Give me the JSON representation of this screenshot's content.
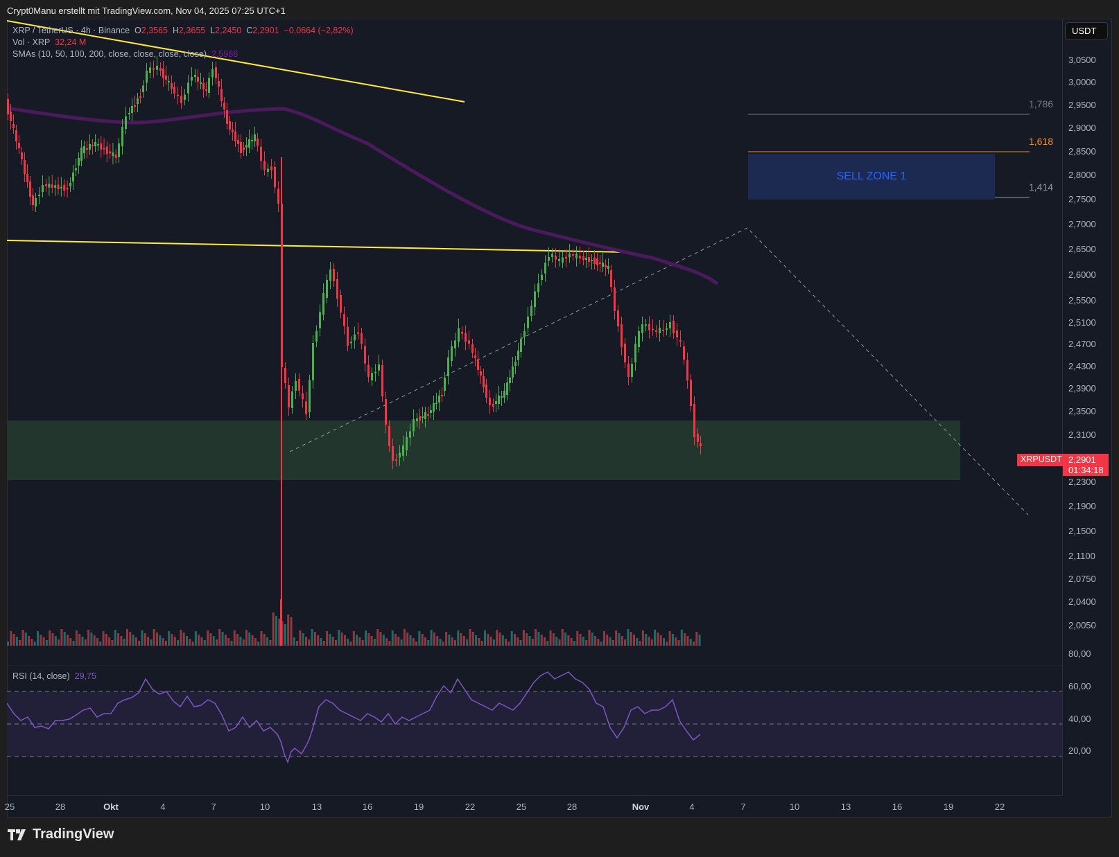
{
  "credit": "Crypt0Manu erstellt mit TradingView.com, Nov 04, 2025 07:25 UTC+1",
  "legend": {
    "symbol": "XRP / TetherUS · 4h · Binance",
    "o_label": "O",
    "o_value": "2,3565",
    "h_label": "H",
    "h_value": "2,3655",
    "l_label": "L",
    "l_value": "2,2450",
    "c_label": "C",
    "c_value": "2,2901",
    "change": "−0,0664 (−2,82%)",
    "vol_label": "Vol · XRP",
    "vol_value": "32,24 M",
    "sma_label": "SMAs (10, 50, 100, 200, close, close, close, close)",
    "sma_value": "2,5986"
  },
  "rsi_legend": {
    "label": "RSI (14, close)",
    "value": "29,75"
  },
  "currency_button": "USDT",
  "last_price": {
    "symbol": "XRPUSDT",
    "price": "2,2901",
    "countdown": "01:34:18"
  },
  "sell_zone_label": "SELL ZONE 1",
  "fib_levels": [
    {
      "label": "1,786",
      "color": "#787b86"
    },
    {
      "label": "1,618",
      "color": "#f7931a"
    },
    {
      "label": "1,414",
      "color": "#9598a1"
    }
  ],
  "price_axis": [
    "3,0500",
    "3,0000",
    "2,9500",
    "2,9000",
    "2,8500",
    "2,8000",
    "2,7500",
    "2,7000",
    "2,6500",
    "2,6000",
    "2,5500",
    "2,5100",
    "2,4700",
    "2,4300",
    "2,3900",
    "2,3500",
    "2,3100",
    "2,2300",
    "2,1900",
    "2,1500",
    "2,1100",
    "2,0750",
    "2,0400",
    "2,0050"
  ],
  "rsi_axis": [
    "80,00",
    "60,00",
    "40,00",
    "20,00"
  ],
  "time_axis": [
    {
      "label": "25",
      "bold": false
    },
    {
      "label": "28",
      "bold": false
    },
    {
      "label": "Okt",
      "bold": true
    },
    {
      "label": "4",
      "bold": false
    },
    {
      "label": "7",
      "bold": false
    },
    {
      "label": "10",
      "bold": false
    },
    {
      "label": "13",
      "bold": false
    },
    {
      "label": "16",
      "bold": false
    },
    {
      "label": "19",
      "bold": false
    },
    {
      "label": "22",
      "bold": false
    },
    {
      "label": "25",
      "bold": false
    },
    {
      "label": "28",
      "bold": false
    },
    {
      "label": "Nov",
      "bold": true
    },
    {
      "label": "4",
      "bold": false
    },
    {
      "label": "7",
      "bold": false
    },
    {
      "label": "10",
      "bold": false
    },
    {
      "label": "13",
      "bold": false
    },
    {
      "label": "16",
      "bold": false
    },
    {
      "label": "19",
      "bold": false
    },
    {
      "label": "22",
      "bold": false
    }
  ],
  "brand": "TradingView",
  "colors": {
    "up": "#4caf50",
    "down": "#f23645",
    "vol_up": "#22696a",
    "vol_down": "#8e3a40",
    "sma": "#4a1a5c",
    "trend": "#ffeb3b",
    "rsi": "#7e57c2",
    "demand_zone": "#22362e",
    "sell_zone": "#1c2951"
  },
  "chart_data": {
    "type": "candlestick",
    "title": "XRP / TetherUS · 4h · Binance",
    "xlabel": "",
    "ylabel": "USDT",
    "ylim": [
      2.0,
      3.07
    ],
    "x_ticks": [
      "25",
      "28",
      "Okt",
      "4",
      "7",
      "10",
      "13",
      "16",
      "19",
      "22",
      "25",
      "28",
      "Nov",
      "4"
    ],
    "key_points": [
      {
        "date": "Sep 25",
        "close": 2.85
      },
      {
        "date": "Sep 27",
        "close": 2.74
      },
      {
        "date": "Okt 2",
        "close": 3.02
      },
      {
        "date": "Okt 4",
        "close": 3.03
      },
      {
        "date": "Okt 7",
        "close": 2.98
      },
      {
        "date": "Okt 10",
        "close": 2.8
      },
      {
        "date": "Okt 10 (crash wick low)",
        "low": 1.58
      },
      {
        "date": "Okt 13",
        "close": 2.62
      },
      {
        "date": "Okt 17",
        "close": 2.26
      },
      {
        "date": "Okt 21",
        "close": 2.55
      },
      {
        "date": "Okt 27",
        "close": 2.66
      },
      {
        "date": "Okt 30",
        "close": 2.4
      },
      {
        "date": "Nov 2",
        "close": 2.51
      },
      {
        "date": "Nov 4",
        "open": 2.3565,
        "high": 2.3655,
        "low": 2.245,
        "close": 2.2901
      }
    ],
    "sma200_last": 2.5986,
    "annotations": [
      "SELL ZONE 1 (2.78–2.85)",
      "Fib 1,786 ≈ 2.935",
      "Fib 1,618 ≈ 2.86",
      "Fib 1,414 ≈ 2.77",
      "Demand zone 2.26–2.36",
      "Descending trendline",
      "Horizontal resistance ≈ 2.66"
    ],
    "rsi": {
      "period": 14,
      "last": 29.75,
      "levels": [
        70,
        50,
        30
      ],
      "ylim": [
        10,
        85
      ]
    }
  }
}
